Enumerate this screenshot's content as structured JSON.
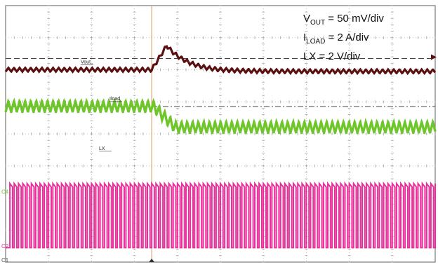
{
  "chart_data": {
    "type": "line",
    "title": "",
    "grid": true,
    "grid_divisions": {
      "x": 10,
      "y": 8
    },
    "x": {
      "label": "",
      "range_div": [
        0,
        10
      ],
      "trigger_div": 3.4
    },
    "legend": {
      "placement": "top-right",
      "lines": [
        {
          "name": "V",
          "sub": "OUT",
          "scale": " = 50 mV/div"
        },
        {
          "name": "I",
          "sub": "LOAD",
          "scale": " = 2 A/div"
        },
        {
          "name": "LX",
          "sub": "",
          "scale": " = 2 V/div"
        }
      ]
    },
    "series": [
      {
        "name": "Vout",
        "channel_marker": "",
        "color": "#5a1010",
        "baseline_div": 1.0,
        "ripple_div": 0.12,
        "ripple_period_div": 0.13,
        "transient": {
          "start_div": 3.4,
          "peak_div": 3.75,
          "peak_amplitude_div": 0.75,
          "settle_div": 5.2
        }
      },
      {
        "name": "Iload",
        "channel_marker": "C4",
        "color": "#6ec62a",
        "level_before_div": 2.65,
        "level_after_div": 2.0,
        "step_div": 3.45,
        "step_end_div": 3.95,
        "ripple_div": 0.35,
        "ripple_period_div": 0.13
      },
      {
        "name": "LX",
        "channel_marker": "C2",
        "color": "#e8309a",
        "high_div": 1.45,
        "low_div": 0.0,
        "ref_div": 2.0,
        "period_div": 0.1,
        "duty": 0.62
      }
    ],
    "ref_markers": [
      "C1"
    ]
  }
}
